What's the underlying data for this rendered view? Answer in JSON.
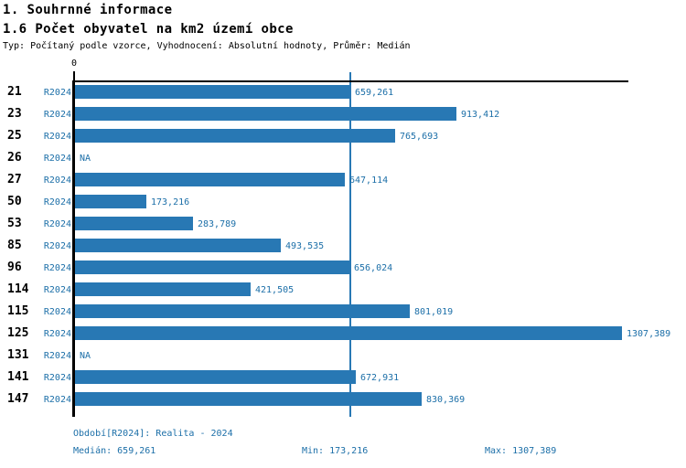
{
  "header": {
    "title": "1. Souhrnné informace",
    "subtitle": "1.6 Počet obyvatel na km2 území obce",
    "meta": "Typ: Počítaný podle vzorce, Vyhodnocení: Absolutní hodnoty, Průměr: Medián"
  },
  "chart_data": {
    "type": "bar",
    "orientation": "horizontal",
    "x_axis": {
      "zero_label": "0",
      "min": 0,
      "max_extent": 1323
    },
    "median_line_value": 659.261,
    "rows": [
      {
        "category": "21",
        "series": "R2024",
        "value": 659.261,
        "label": "659,261"
      },
      {
        "category": "23",
        "series": "R2024",
        "value": 913.412,
        "label": "913,412"
      },
      {
        "category": "25",
        "series": "R2024",
        "value": 765.693,
        "label": "765,693"
      },
      {
        "category": "26",
        "series": "R2024",
        "value": null,
        "label": "NA"
      },
      {
        "category": "27",
        "series": "R2024",
        "value": 647.114,
        "label": "647,114"
      },
      {
        "category": "50",
        "series": "R2024",
        "value": 173.216,
        "label": "173,216"
      },
      {
        "category": "53",
        "series": "R2024",
        "value": 283.789,
        "label": "283,789"
      },
      {
        "category": "85",
        "series": "R2024",
        "value": 493.535,
        "label": "493,535"
      },
      {
        "category": "96",
        "series": "R2024",
        "value": 656.024,
        "label": "656,024"
      },
      {
        "category": "114",
        "series": "R2024",
        "value": 421.505,
        "label": "421,505"
      },
      {
        "category": "115",
        "series": "R2024",
        "value": 801.019,
        "label": "801,019"
      },
      {
        "category": "125",
        "series": "R2024",
        "value": 1307.389,
        "label": "1307,389"
      },
      {
        "category": "131",
        "series": "R2024",
        "value": null,
        "label": "NA"
      },
      {
        "category": "141",
        "series": "R2024",
        "value": 672.931,
        "label": "672,931"
      },
      {
        "category": "147",
        "series": "R2024",
        "value": 830.369,
        "label": "830,369"
      }
    ],
    "colors": {
      "bar": "#2878b4",
      "median_line": "#2878b4",
      "label_blue": "#1c6fa8",
      "axis": "#000000"
    }
  },
  "footer": {
    "period": "Období[R2024]: Realita - 2024",
    "median": "Medián: 659,261",
    "min": "Min: 173,216",
    "max": "Max: 1307,389"
  }
}
